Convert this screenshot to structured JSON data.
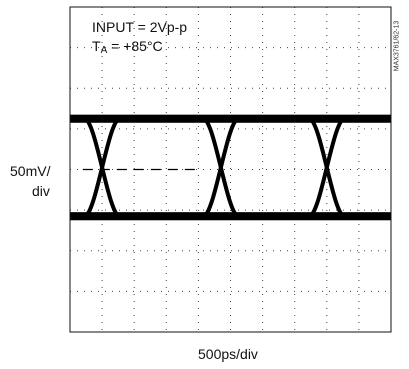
{
  "chart_data": {
    "type": "line",
    "title": "",
    "annotations": {
      "input": "INPUT = 2Vp-p",
      "temp_prefix": "T",
      "temp_sub": "A",
      "temp_suffix": " = +85°C"
    },
    "ylabel_line1": "50mV/",
    "ylabel_line2": "div",
    "xlabel": "500ps/div",
    "figure_id": "MAX3761/62-13",
    "grid": "dotted",
    "divisions": {
      "x": 10,
      "y": 8
    },
    "eye": {
      "high_level_div": 5.25,
      "low_level_div": 2.85,
      "crossings_div": [
        1.0,
        4.7,
        8.0
      ],
      "crossing_level_div": 4.0,
      "crossing_halfwidth_div": 0.55,
      "rail_thickness_div": 0.2
    },
    "threshold_marker": {
      "y_div": 4.0,
      "x_from_div": 0.4,
      "x_to_div": 3.9
    }
  }
}
